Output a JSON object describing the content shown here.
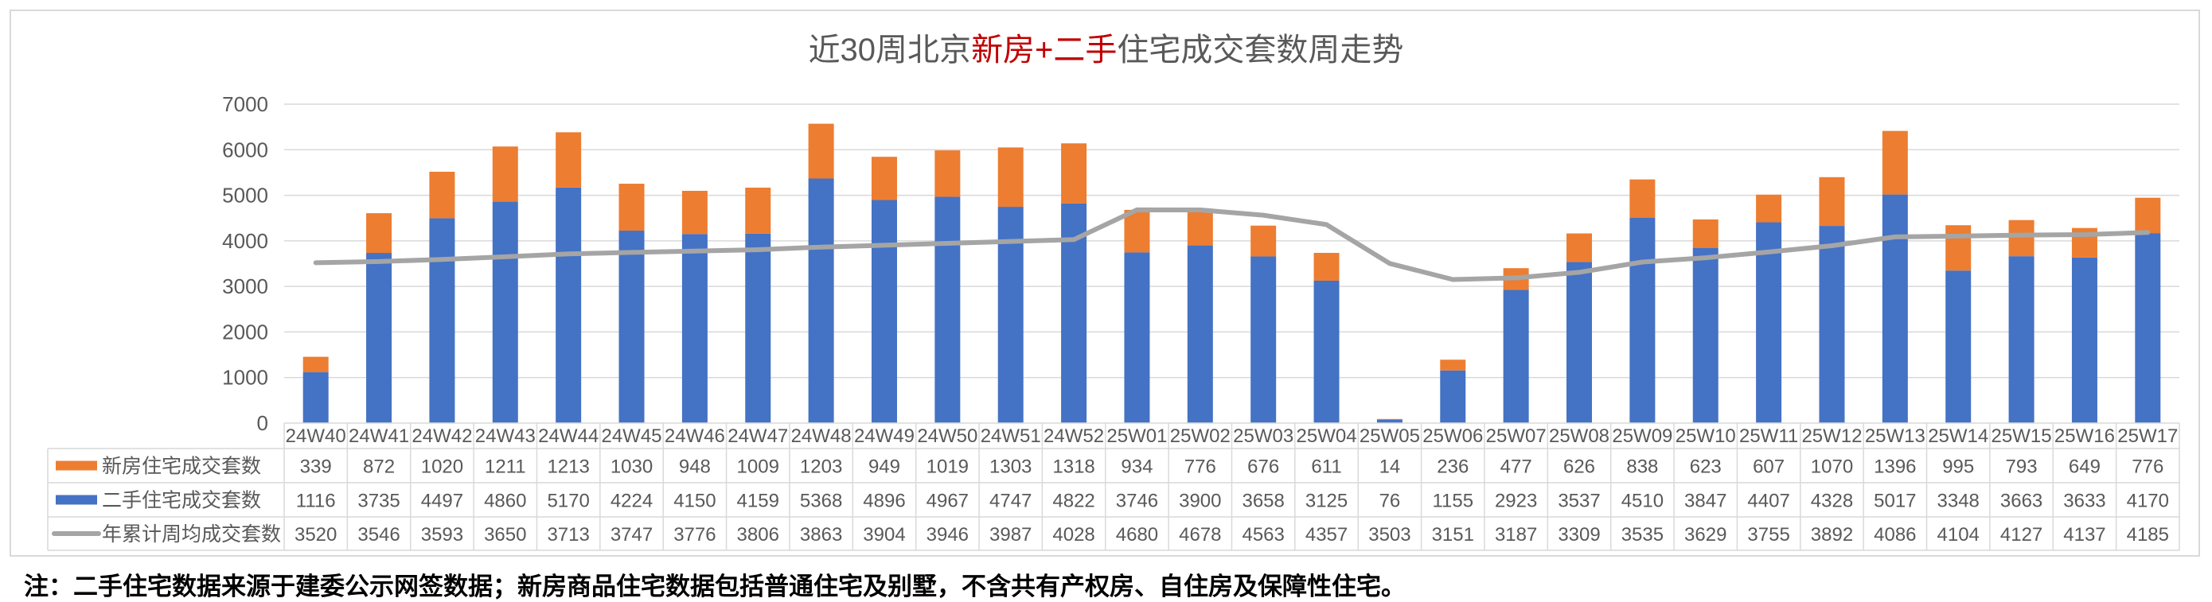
{
  "title": {
    "part1": "近30周北京",
    "part2": "新房+二手",
    "part3": "住宅成交套数周走势"
  },
  "footnote": "注：二手住宅数据来源于建委公示网签数据；新房商品住宅数据包括普通住宅及别墅，不含共有产权房、自住房及保障性住宅。",
  "colors": {
    "new_house": "#ed7d31",
    "second_hand": "#4472c4",
    "avg_line": "#a5a5a5",
    "grid": "#d9d9d9",
    "text": "#595959"
  },
  "chart_data": {
    "type": "bar",
    "stacked": true,
    "title": "近30周北京新房+二手住宅成交套数周走势",
    "categories": [
      "24W40",
      "24W41",
      "24W42",
      "24W43",
      "24W44",
      "24W45",
      "24W46",
      "24W47",
      "24W48",
      "24W49",
      "24W50",
      "24W51",
      "24W52",
      "25W01",
      "25W02",
      "25W03",
      "25W04",
      "25W05",
      "25W06",
      "25W07",
      "25W08",
      "25W09",
      "25W10",
      "25W11",
      "25W12",
      "25W13",
      "25W14",
      "25W15",
      "25W16",
      "25W17"
    ],
    "y_ticks": [
      "0",
      "1000",
      "2000",
      "3000",
      "4000",
      "5000",
      "6000",
      "7000"
    ],
    "ylim": [
      0,
      7000
    ],
    "grid": true,
    "legend_placement": "data-table",
    "series": [
      {
        "name": "新房住宅成交套数",
        "kind": "bar",
        "values": [
          339,
          872,
          1020,
          1211,
          1213,
          1030,
          948,
          1009,
          1203,
          949,
          1019,
          1303,
          1318,
          934,
          776,
          676,
          611,
          14,
          236,
          477,
          626,
          838,
          623,
          607,
          1070,
          1396,
          995,
          793,
          649,
          776
        ]
      },
      {
        "name": "二手住宅成交套数",
        "kind": "bar",
        "values": [
          1116,
          3735,
          4497,
          4860,
          5170,
          4224,
          4150,
          4159,
          5368,
          4896,
          4967,
          4747,
          4822,
          3746,
          3900,
          3658,
          3125,
          76,
          1155,
          2923,
          3537,
          4510,
          3847,
          4407,
          4328,
          5017,
          3348,
          3663,
          3633,
          4170
        ]
      },
      {
        "name": "年累计周均成交套数",
        "kind": "line",
        "values": [
          3520,
          3546,
          3593,
          3650,
          3713,
          3747,
          3776,
          3806,
          3863,
          3904,
          3946,
          3987,
          4028,
          4680,
          4678,
          4563,
          4357,
          3503,
          3151,
          3187,
          3309,
          3535,
          3629,
          3755,
          3892,
          4086,
          4104,
          4127,
          4137,
          4185
        ]
      }
    ]
  }
}
